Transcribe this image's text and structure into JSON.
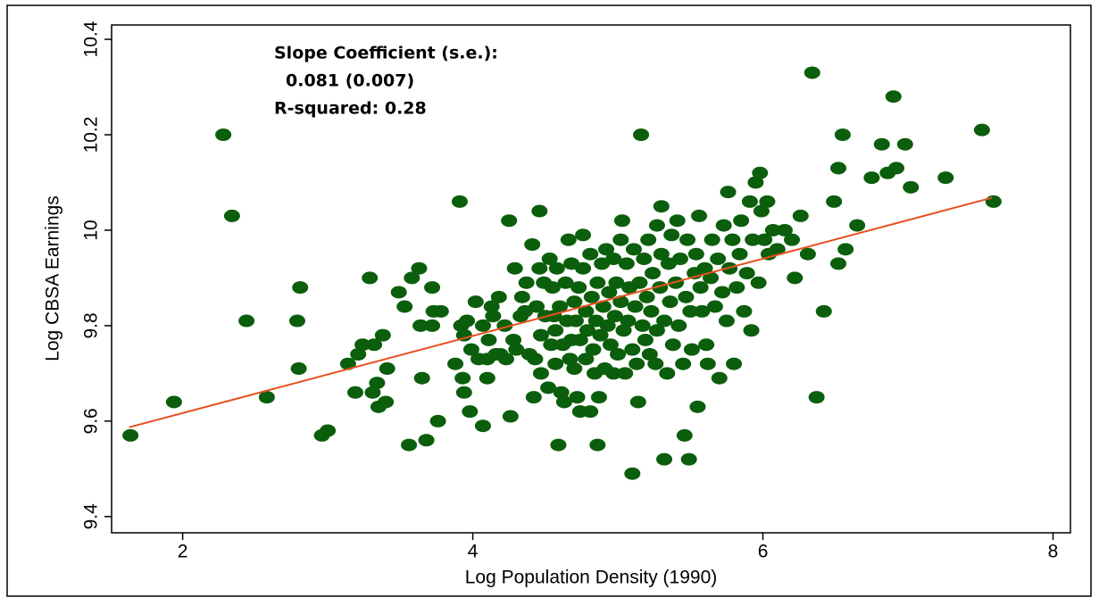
{
  "chart_data": {
    "type": "scatter",
    "xlabel": "Log Population Density (1990)",
    "ylabel": "Log CBSA Earnings",
    "annotations": [
      "Slope Coefficient (s.e.):",
      "0.081 (0.007)",
      "R-squared: 0.28"
    ],
    "xlim": [
      1.51,
      8.12
    ],
    "ylim": [
      9.366,
      10.43
    ],
    "xticks": [
      2,
      4,
      6,
      8
    ],
    "yticks": [
      9.4,
      9.6,
      9.8,
      10,
      10.2,
      10.4
    ],
    "color": "#0b5e0b",
    "fit": {
      "x": [
        1.63,
        7.58
      ],
      "y": [
        9.587,
        10.068
      ],
      "color": "#e8501e"
    },
    "x": [
      1.64,
      1.94,
      2.28,
      2.34,
      2.44,
      2.58,
      2.79,
      2.81,
      2.8,
      2.96,
      3.0,
      3.14,
      3.19,
      3.21,
      3.24,
      3.29,
      3.31,
      3.32,
      3.34,
      3.35,
      3.38,
      3.4,
      3.41,
      3.49,
      3.53,
      3.56,
      3.58,
      3.63,
      3.64,
      3.65,
      3.68,
      3.72,
      3.72,
      3.73,
      3.76,
      3.78,
      3.88,
      3.91,
      3.92,
      3.93,
      3.94,
      3.94,
      3.96,
      3.98,
      3.99,
      4.02,
      4.04,
      4.07,
      4.07,
      4.1,
      4.1,
      4.11,
      4.13,
      4.14,
      4.16,
      4.18,
      4.19,
      4.22,
      4.23,
      4.25,
      4.26,
      4.28,
      4.29,
      4.3,
      4.33,
      4.34,
      4.36,
      4.37,
      4.39,
      4.41,
      4.42,
      4.43,
      4.44,
      4.46,
      4.46,
      4.47,
      4.47,
      4.49,
      4.5,
      4.52,
      4.53,
      4.54,
      4.55,
      4.56,
      4.57,
      4.57,
      4.58,
      4.59,
      4.6,
      4.61,
      4.62,
      4.63,
      4.64,
      4.65,
      4.66,
      4.67,
      4.68,
      4.68,
      4.7,
      4.7,
      4.71,
      4.72,
      4.73,
      4.74,
      4.74,
      4.76,
      4.76,
      4.78,
      4.78,
      4.79,
      4.81,
      4.81,
      4.82,
      4.83,
      4.84,
      4.85,
      4.86,
      4.86,
      4.87,
      4.88,
      4.89,
      4.9,
      4.91,
      4.92,
      4.93,
      4.94,
      4.95,
      4.97,
      4.97,
      4.98,
      4.99,
      5.0,
      5.02,
      5.02,
      5.03,
      5.04,
      5.05,
      5.06,
      5.07,
      5.08,
      5.1,
      5.1,
      5.11,
      5.12,
      5.13,
      5.14,
      5.15,
      5.16,
      5.17,
      5.18,
      5.19,
      5.2,
      5.21,
      5.22,
      5.23,
      5.24,
      5.26,
      5.27,
      5.27,
      5.29,
      5.3,
      5.3,
      5.32,
      5.32,
      5.34,
      5.35,
      5.36,
      5.37,
      5.38,
      5.4,
      5.41,
      5.42,
      5.43,
      5.45,
      5.46,
      5.47,
      5.48,
      5.49,
      5.5,
      5.51,
      5.53,
      5.54,
      5.55,
      5.56,
      5.57,
      5.58,
      5.6,
      5.61,
      5.62,
      5.64,
      5.65,
      5.67,
      5.69,
      5.7,
      5.72,
      5.73,
      5.75,
      5.76,
      5.77,
      5.79,
      5.8,
      5.82,
      5.84,
      5.85,
      5.87,
      5.89,
      5.91,
      5.92,
      5.93,
      5.95,
      5.97,
      5.98,
      5.99,
      6.01,
      6.03,
      6.04,
      6.07,
      6.1,
      6.15,
      6.2,
      6.22,
      6.26,
      6.31,
      6.34,
      6.37,
      6.42,
      6.49,
      6.52,
      6.52,
      6.55,
      6.57,
      6.65,
      6.75,
      6.82,
      6.86,
      6.9,
      6.92,
      6.98,
      7.02,
      7.26,
      7.51,
      7.59
    ],
    "y": [
      9.57,
      9.64,
      10.2,
      10.03,
      9.81,
      9.65,
      9.81,
      9.88,
      9.71,
      9.57,
      9.58,
      9.72,
      9.66,
      9.74,
      9.76,
      9.9,
      9.66,
      9.76,
      9.68,
      9.63,
      9.78,
      9.64,
      9.71,
      9.87,
      9.84,
      9.55,
      9.9,
      9.92,
      9.8,
      9.69,
      9.56,
      9.88,
      9.8,
      9.83,
      9.6,
      9.83,
      9.72,
      10.06,
      9.8,
      9.69,
      9.66,
      9.78,
      9.81,
      9.62,
      9.75,
      9.85,
      9.73,
      9.8,
      9.59,
      9.73,
      9.69,
      9.77,
      9.84,
      9.82,
      9.74,
      9.86,
      9.74,
      9.8,
      9.73,
      10.02,
      9.61,
      9.77,
      9.92,
      9.75,
      9.82,
      9.86,
      9.83,
      9.89,
      9.74,
      9.97,
      9.65,
      9.73,
      9.84,
      10.04,
      9.92,
      9.78,
      9.7,
      9.89,
      9.82,
      9.67,
      9.94,
      9.76,
      9.88,
      9.82,
      9.72,
      9.79,
      9.92,
      9.55,
      9.84,
      9.66,
      9.76,
      9.64,
      9.89,
      9.81,
      9.98,
      9.73,
      9.77,
      9.93,
      9.85,
      9.71,
      9.81,
      9.65,
      9.88,
      9.77,
      9.62,
      9.92,
      9.99,
      9.83,
      9.73,
      9.79,
      9.62,
      9.95,
      9.86,
      9.75,
      9.7,
      9.81,
      9.55,
      9.89,
      9.65,
      9.78,
      9.93,
      9.84,
      9.71,
      9.96,
      9.8,
      9.87,
      9.76,
      9.7,
      9.94,
      9.82,
      9.89,
      9.74,
      9.98,
      9.85,
      10.02,
      9.79,
      9.7,
      9.93,
      9.81,
      9.88,
      9.75,
      9.49,
      9.96,
      9.84,
      9.72,
      9.64,
      9.89,
      10.2,
      9.8,
      9.94,
      9.77,
      9.86,
      9.98,
      9.74,
      9.83,
      9.91,
      9.72,
      10.01,
      9.79,
      9.88,
      10.05,
      9.95,
      9.52,
      9.81,
      9.7,
      9.93,
      9.85,
      9.99,
      9.76,
      9.89,
      10.02,
      9.8,
      9.94,
      9.72,
      9.57,
      9.86,
      9.98,
      9.52,
      9.83,
      9.75,
      9.91,
      9.95,
      9.63,
      10.03,
      9.88,
      9.83,
      9.92,
      9.76,
      9.72,
      9.9,
      9.98,
      9.84,
      9.94,
      9.69,
      9.87,
      10.01,
      9.81,
      10.08,
      9.92,
      9.98,
      9.72,
      9.88,
      9.95,
      10.02,
      9.83,
      9.91,
      10.06,
      9.79,
      9.98,
      10.1,
      9.89,
      10.12,
      10.04,
      9.98,
      10.06,
      9.95,
      10.0,
      9.96,
      10.0,
      9.98,
      9.9,
      10.03,
      9.95,
      10.33,
      9.65,
      9.83,
      10.06,
      9.93,
      10.13,
      10.2,
      9.96,
      10.01,
      10.11,
      10.18,
      10.12,
      10.28,
      10.13,
      10.18,
      10.09,
      10.11,
      10.21,
      10.06
    ]
  }
}
